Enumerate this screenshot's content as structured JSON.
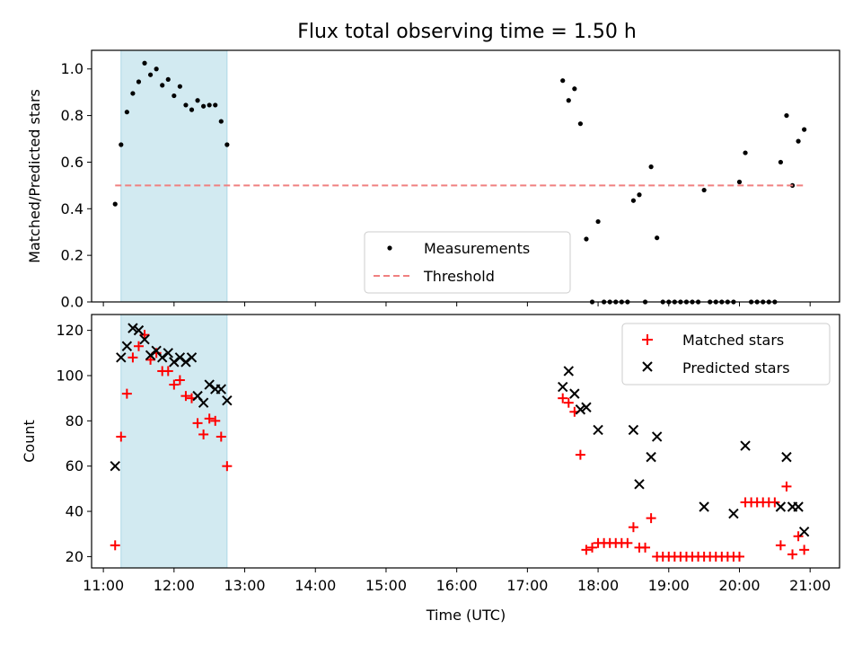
{
  "chart_data": [
    {
      "type": "scatter",
      "title": "Flux total observing time = 1.50 h",
      "ylabel": "Matched/Predicted stars",
      "xlabel": "",
      "xlim": [
        "10:50",
        "21:25"
      ],
      "ylim": [
        0,
        1.08
      ],
      "yticks": [
        "0.0",
        "0.2",
        "0.4",
        "0.6",
        "0.8",
        "1.0"
      ],
      "highlight_span": [
        "11:15",
        "12:45"
      ],
      "highlight_color": "#add8e6",
      "legend_position": "lower-center",
      "series": [
        {
          "name": "Measurements",
          "color": "#000000",
          "marker": "dot",
          "points": [
            [
              "11:10",
              0.42
            ],
            [
              "11:15",
              0.675
            ],
            [
              "11:20",
              0.815
            ],
            [
              "11:25",
              0.895
            ],
            [
              "11:30",
              0.945
            ],
            [
              "11:35",
              1.025
            ],
            [
              "11:40",
              0.975
            ],
            [
              "11:45",
              1.0
            ],
            [
              "11:50",
              0.93
            ],
            [
              "11:55",
              0.955
            ],
            [
              "12:00",
              0.885
            ],
            [
              "12:05",
              0.925
            ],
            [
              "12:10",
              0.845
            ],
            [
              "12:15",
              0.825
            ],
            [
              "12:20",
              0.865
            ],
            [
              "12:25",
              0.84
            ],
            [
              "12:30",
              0.845
            ],
            [
              "12:35",
              0.845
            ],
            [
              "12:40",
              0.775
            ],
            [
              "12:45",
              0.675
            ],
            [
              "17:30",
              0.95
            ],
            [
              "17:35",
              0.865
            ],
            [
              "17:40",
              0.915
            ],
            [
              "17:45",
              0.765
            ],
            [
              "17:50",
              0.27
            ],
            [
              "17:55",
              0.0
            ],
            [
              "18:00",
              0.345
            ],
            [
              "18:05",
              0.0
            ],
            [
              "18:10",
              0.0
            ],
            [
              "18:15",
              0.0
            ],
            [
              "18:20",
              0.0
            ],
            [
              "18:25",
              0.0
            ],
            [
              "18:30",
              0.435
            ],
            [
              "18:35",
              0.46
            ],
            [
              "18:40",
              0.0
            ],
            [
              "18:45",
              0.58
            ],
            [
              "18:50",
              0.275
            ],
            [
              "18:55",
              0.0
            ],
            [
              "19:00",
              0.0
            ],
            [
              "19:05",
              0.0
            ],
            [
              "19:10",
              0.0
            ],
            [
              "19:15",
              0.0
            ],
            [
              "19:20",
              0.0
            ],
            [
              "19:25",
              0.0
            ],
            [
              "19:30",
              0.48
            ],
            [
              "19:35",
              0.0
            ],
            [
              "19:40",
              0.0
            ],
            [
              "19:45",
              0.0
            ],
            [
              "19:50",
              0.0
            ],
            [
              "19:55",
              0.0
            ],
            [
              "20:00",
              0.515
            ],
            [
              "20:05",
              0.64
            ],
            [
              "20:10",
              0.0
            ],
            [
              "20:15",
              0.0
            ],
            [
              "20:20",
              0.0
            ],
            [
              "20:25",
              0.0
            ],
            [
              "20:30",
              0.0
            ],
            [
              "20:35",
              0.6
            ],
            [
              "20:40",
              0.8
            ],
            [
              "20:45",
              0.5
            ],
            [
              "20:50",
              0.69
            ],
            [
              "20:55",
              0.74
            ]
          ]
        },
        {
          "name": "Threshold",
          "color": "#f08080",
          "style": "dashed",
          "points": [
            [
              "11:10",
              0.5
            ],
            [
              "20:55",
              0.5
            ]
          ]
        }
      ]
    },
    {
      "type": "scatter",
      "title": "",
      "ylabel": "Count",
      "xlabel": "Time (UTC)",
      "xlim": [
        "10:50",
        "21:25"
      ],
      "ylim": [
        15,
        127
      ],
      "yticks": [
        "20",
        "40",
        "60",
        "80",
        "100",
        "120"
      ],
      "xticks": [
        "11:00",
        "12:00",
        "13:00",
        "14:00",
        "15:00",
        "16:00",
        "17:00",
        "18:00",
        "19:00",
        "20:00",
        "21:00"
      ],
      "highlight_span": [
        "11:15",
        "12:45"
      ],
      "highlight_color": "#add8e6",
      "legend_position": "upper-right",
      "series": [
        {
          "name": "Matched stars",
          "color": "#ff0000",
          "marker": "plus",
          "points": [
            [
              "11:10",
              25
            ],
            [
              "11:15",
              73
            ],
            [
              "11:20",
              92
            ],
            [
              "11:25",
              108
            ],
            [
              "11:30",
              113
            ],
            [
              "11:35",
              118
            ],
            [
              "11:40",
              107
            ],
            [
              "11:45",
              110
            ],
            [
              "11:50",
              102
            ],
            [
              "11:55",
              102
            ],
            [
              "12:00",
              96
            ],
            [
              "12:05",
              98
            ],
            [
              "12:10",
              91
            ],
            [
              "12:15",
              90
            ],
            [
              "12:20",
              79
            ],
            [
              "12:25",
              74
            ],
            [
              "12:30",
              81
            ],
            [
              "12:35",
              80
            ],
            [
              "12:40",
              73
            ],
            [
              "12:45",
              60
            ],
            [
              "17:30",
              90
            ],
            [
              "17:35",
              88
            ],
            [
              "17:40",
              84
            ],
            [
              "17:45",
              65
            ],
            [
              "17:50",
              23
            ],
            [
              "17:55",
              24
            ],
            [
              "18:00",
              26
            ],
            [
              "18:05",
              26
            ],
            [
              "18:10",
              26
            ],
            [
              "18:15",
              26
            ],
            [
              "18:20",
              26
            ],
            [
              "18:25",
              26
            ],
            [
              "18:30",
              33
            ],
            [
              "18:35",
              24
            ],
            [
              "18:40",
              24
            ],
            [
              "18:45",
              37
            ],
            [
              "18:50",
              20
            ],
            [
              "18:55",
              20
            ],
            [
              "19:00",
              20
            ],
            [
              "19:05",
              20
            ],
            [
              "19:10",
              20
            ],
            [
              "19:15",
              20
            ],
            [
              "19:20",
              20
            ],
            [
              "19:25",
              20
            ],
            [
              "19:30",
              20
            ],
            [
              "19:35",
              20
            ],
            [
              "19:40",
              20
            ],
            [
              "19:45",
              20
            ],
            [
              "19:50",
              20
            ],
            [
              "19:55",
              20
            ],
            [
              "20:00",
              20
            ],
            [
              "20:05",
              44
            ],
            [
              "20:10",
              44
            ],
            [
              "20:15",
              44
            ],
            [
              "20:20",
              44
            ],
            [
              "20:25",
              44
            ],
            [
              "20:30",
              44
            ],
            [
              "20:35",
              25
            ],
            [
              "20:40",
              51
            ],
            [
              "20:45",
              21
            ],
            [
              "20:50",
              29
            ],
            [
              "20:55",
              23
            ]
          ]
        },
        {
          "name": "Predicted stars",
          "color": "#000000",
          "marker": "x",
          "points": [
            [
              "11:10",
              60
            ],
            [
              "11:15",
              108
            ],
            [
              "11:20",
              113
            ],
            [
              "11:25",
              121
            ],
            [
              "11:30",
              120
            ],
            [
              "11:35",
              116
            ],
            [
              "11:40",
              109
            ],
            [
              "11:45",
              111
            ],
            [
              "11:50",
              108
            ],
            [
              "11:55",
              110
            ],
            [
              "12:00",
              106
            ],
            [
              "12:05",
              108
            ],
            [
              "12:10",
              106
            ],
            [
              "12:15",
              108
            ],
            [
              "12:20",
              91
            ],
            [
              "12:25",
              88
            ],
            [
              "12:30",
              96
            ],
            [
              "12:35",
              94
            ],
            [
              "12:40",
              94
            ],
            [
              "12:45",
              89
            ],
            [
              "17:30",
              95
            ],
            [
              "17:35",
              102
            ],
            [
              "17:40",
              92
            ],
            [
              "17:45",
              85
            ],
            [
              "17:50",
              86
            ],
            [
              "18:00",
              76
            ],
            [
              "18:30",
              76
            ],
            [
              "18:35",
              52
            ],
            [
              "18:45",
              64
            ],
            [
              "18:50",
              73
            ],
            [
              "19:30",
              42
            ],
            [
              "19:55",
              39
            ],
            [
              "20:05",
              69
            ],
            [
              "20:35",
              42
            ],
            [
              "20:40",
              64
            ],
            [
              "20:45",
              42
            ],
            [
              "20:50",
              42
            ],
            [
              "20:55",
              31
            ]
          ]
        }
      ]
    }
  ]
}
